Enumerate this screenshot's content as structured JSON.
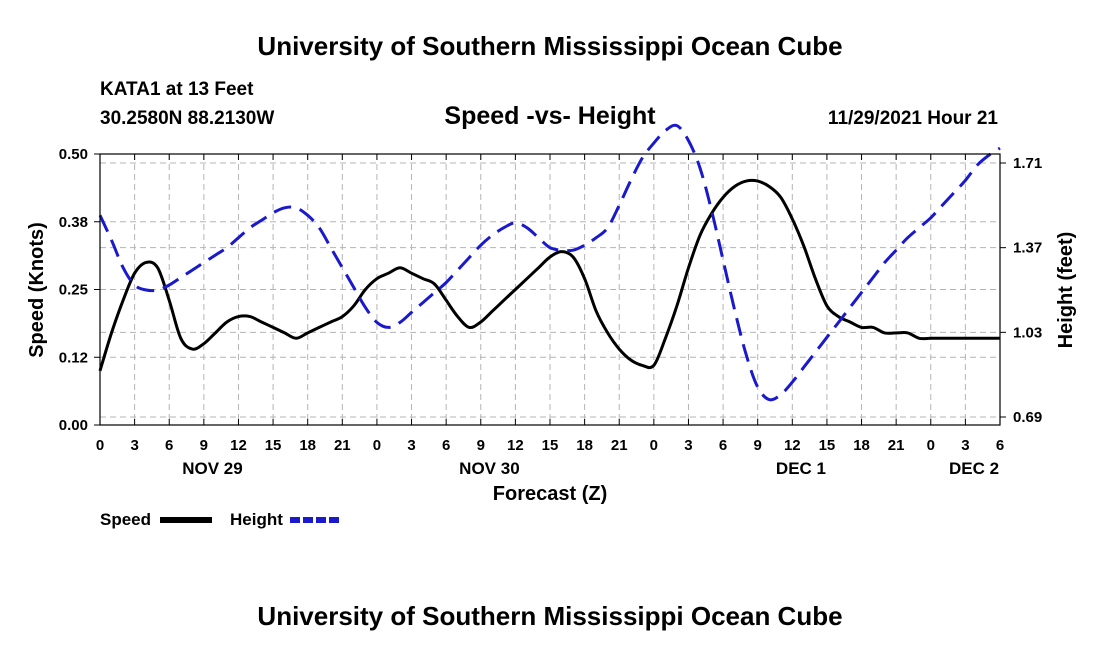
{
  "header": {
    "title": "University of Southern Mississippi Ocean Cube",
    "station": "KATA1 at 13 Feet",
    "location": "30.2580N  88.2130W",
    "datetime": "11/29/2021 Hour 21"
  },
  "footer": {
    "title": "University of Southern Mississippi Ocean Cube"
  },
  "colors": {
    "speed": "#000000",
    "height": "#1a1acc",
    "grid": "#b4b4b4"
  },
  "chart_data": {
    "type": "line",
    "title": "Speed -vs- Height",
    "xlabel": "Forecast (Z)",
    "ylabel": "Speed (Knots)",
    "y2label": "Height (feet)",
    "xlim": [
      0,
      78
    ],
    "ylim": [
      0,
      0.5
    ],
    "y2lim": [
      0.69,
      1.71
    ],
    "x_tick_values": [
      0,
      3,
      6,
      9,
      12,
      15,
      18,
      21,
      24,
      27,
      30,
      33,
      36,
      39,
      42,
      45,
      48,
      51,
      54,
      57,
      60,
      63,
      66,
      69,
      72,
      75,
      78
    ],
    "x_tick_labels": [
      "0",
      "3",
      "6",
      "9",
      "12",
      "15",
      "18",
      "21",
      "0",
      "3",
      "6",
      "9",
      "12",
      "15",
      "18",
      "21",
      "0",
      "3",
      "6",
      "9",
      "12",
      "15",
      "18",
      "21",
      "0",
      "3",
      "6"
    ],
    "y_ticks": [
      "0.00",
      "0.12",
      "0.25",
      "0.38",
      "0.50"
    ],
    "y_tick_values": [
      0,
      0.125,
      0.25,
      0.375,
      0.5
    ],
    "y2_ticks": [
      "0.69",
      "1.03",
      "1.37",
      "1.71"
    ],
    "y2_tick_values": [
      0.69,
      1.03,
      1.37,
      1.71
    ],
    "day_labels": [
      {
        "label": "NOV 29",
        "x": 9.75
      },
      {
        "label": "NOV 30",
        "x": 33.75
      },
      {
        "label": "DEC 1",
        "x": 60.75
      },
      {
        "label": "DEC 2",
        "x": 75.75
      }
    ],
    "legend": [
      {
        "name": "Speed",
        "style": "solid"
      },
      {
        "name": "Height",
        "style": "dashed"
      }
    ],
    "series": [
      {
        "name": "Speed",
        "axis": "left",
        "x": [
          0,
          1,
          2,
          3,
          4,
          5,
          6,
          7,
          8,
          9,
          10,
          11,
          12,
          13,
          14,
          15,
          16,
          17,
          18,
          19,
          20,
          21,
          22,
          23,
          24,
          25,
          26,
          27,
          28,
          29,
          30,
          31,
          32,
          33,
          34,
          35,
          36,
          37,
          38,
          39,
          40,
          41,
          42,
          43,
          44,
          45,
          46,
          47,
          48,
          49,
          50,
          51,
          52,
          53,
          54,
          55,
          56,
          57,
          58,
          59,
          60,
          61,
          62,
          63,
          64,
          65,
          66,
          67,
          68,
          69,
          70,
          71,
          72,
          73,
          74,
          75,
          76,
          77,
          78
        ],
        "values": [
          0.1,
          0.17,
          0.23,
          0.28,
          0.3,
          0.29,
          0.23,
          0.16,
          0.14,
          0.15,
          0.17,
          0.19,
          0.2,
          0.2,
          0.19,
          0.18,
          0.17,
          0.16,
          0.17,
          0.18,
          0.19,
          0.2,
          0.22,
          0.25,
          0.27,
          0.28,
          0.29,
          0.28,
          0.27,
          0.26,
          0.23,
          0.2,
          0.18,
          0.19,
          0.21,
          0.23,
          0.25,
          0.27,
          0.29,
          0.31,
          0.32,
          0.31,
          0.27,
          0.21,
          0.17,
          0.14,
          0.12,
          0.11,
          0.11,
          0.16,
          0.22,
          0.29,
          0.35,
          0.39,
          0.42,
          0.44,
          0.45,
          0.45,
          0.44,
          0.42,
          0.38,
          0.33,
          0.27,
          0.22,
          0.2,
          0.19,
          0.18,
          0.18,
          0.17,
          0.17,
          0.17,
          0.16,
          0.16,
          0.16,
          0.16,
          0.16,
          0.16,
          0.16,
          0.16
        ]
      },
      {
        "name": "Height",
        "axis": "right",
        "x": [
          0,
          1,
          2,
          3,
          4,
          5,
          6,
          7,
          8,
          9,
          10,
          11,
          12,
          13,
          14,
          15,
          16,
          17,
          18,
          19,
          20,
          21,
          22,
          23,
          24,
          25,
          26,
          27,
          28,
          29,
          30,
          31,
          32,
          33,
          34,
          35,
          36,
          37,
          38,
          39,
          40,
          41,
          42,
          43,
          44,
          45,
          46,
          47,
          48,
          49,
          50,
          51,
          52,
          53,
          54,
          55,
          56,
          57,
          58,
          59,
          60,
          61,
          62,
          63,
          64,
          65,
          66,
          67,
          68,
          69,
          70,
          71,
          72,
          73,
          74,
          75,
          76,
          77,
          78
        ],
        "values": [
          1.5,
          1.4,
          1.29,
          1.22,
          1.2,
          1.2,
          1.22,
          1.25,
          1.28,
          1.31,
          1.34,
          1.37,
          1.41,
          1.45,
          1.48,
          1.51,
          1.53,
          1.53,
          1.5,
          1.45,
          1.37,
          1.29,
          1.21,
          1.13,
          1.07,
          1.05,
          1.07,
          1.11,
          1.15,
          1.19,
          1.23,
          1.28,
          1.33,
          1.38,
          1.42,
          1.45,
          1.47,
          1.45,
          1.41,
          1.37,
          1.36,
          1.36,
          1.38,
          1.41,
          1.45,
          1.54,
          1.64,
          1.73,
          1.79,
          1.84,
          1.86,
          1.8,
          1.69,
          1.52,
          1.32,
          1.12,
          0.94,
          0.81,
          0.76,
          0.78,
          0.83,
          0.89,
          0.95,
          1.01,
          1.07,
          1.13,
          1.19,
          1.25,
          1.31,
          1.36,
          1.41,
          1.45,
          1.49,
          1.54,
          1.59,
          1.64,
          1.7,
          1.74,
          1.77
        ]
      }
    ]
  }
}
